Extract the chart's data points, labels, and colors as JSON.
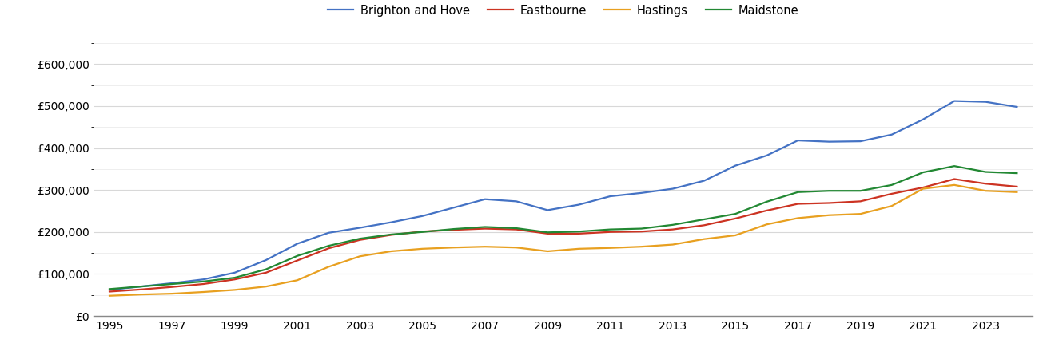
{
  "title": "",
  "legend_labels": [
    "Brighton and Hove",
    "Eastbourne",
    "Hastings",
    "Maidstone"
  ],
  "line_colors": [
    "#4472c4",
    "#cc3322",
    "#e8a020",
    "#228833"
  ],
  "years": [
    1995,
    1996,
    1997,
    1998,
    1999,
    2000,
    2001,
    2002,
    2003,
    2004,
    2005,
    2006,
    2007,
    2008,
    2009,
    2010,
    2011,
    2012,
    2013,
    2014,
    2015,
    2016,
    2017,
    2018,
    2019,
    2020,
    2021,
    2022,
    2023,
    2024
  ],
  "Brighton and Hove": [
    62000,
    70000,
    78000,
    87000,
    103000,
    133000,
    172000,
    198000,
    210000,
    223000,
    238000,
    258000,
    278000,
    273000,
    252000,
    265000,
    285000,
    293000,
    303000,
    322000,
    358000,
    382000,
    418000,
    415000,
    416000,
    432000,
    468000,
    512000,
    510000,
    498000
  ],
  "Eastbourne": [
    58000,
    63000,
    69000,
    76000,
    87000,
    103000,
    132000,
    161000,
    181000,
    193000,
    201000,
    205000,
    208000,
    206000,
    196000,
    196000,
    200000,
    201000,
    206000,
    216000,
    232000,
    251000,
    267000,
    269000,
    273000,
    291000,
    306000,
    326000,
    315000,
    308000
  ],
  "Hastings": [
    48000,
    51000,
    53000,
    57000,
    62000,
    70000,
    85000,
    117000,
    142000,
    154000,
    160000,
    163000,
    165000,
    163000,
    154000,
    160000,
    162000,
    165000,
    170000,
    183000,
    192000,
    218000,
    233000,
    240000,
    243000,
    262000,
    303000,
    312000,
    298000,
    295000
  ],
  "Maidstone": [
    64000,
    70000,
    76000,
    82000,
    91000,
    111000,
    143000,
    167000,
    184000,
    194000,
    200000,
    207000,
    212000,
    209000,
    199000,
    201000,
    206000,
    208000,
    217000,
    230000,
    243000,
    272000,
    295000,
    298000,
    298000,
    312000,
    342000,
    357000,
    343000,
    340000
  ],
  "ylim": [
    0,
    650000
  ],
  "yticks": [
    0,
    100000,
    200000,
    300000,
    400000,
    500000,
    600000
  ],
  "background_color": "#ffffff",
  "grid_color": "#d8d8d8",
  "line_width": 1.6,
  "legend_fontsize": 10.5,
  "tick_fontsize": 10,
  "xlim_left": 1994.5,
  "xlim_right": 2024.5
}
